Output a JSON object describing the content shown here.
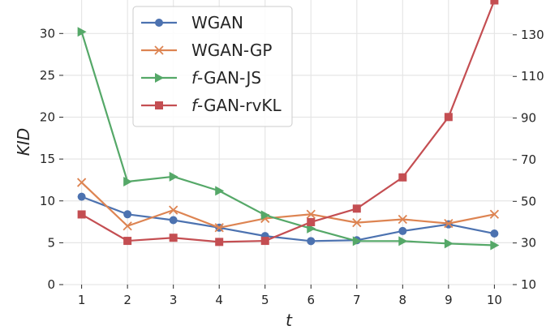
{
  "chart_data": {
    "type": "line",
    "xlabel": "t",
    "ylabel": "KID",
    "x": [
      1,
      2,
      3,
      4,
      5,
      6,
      7,
      8,
      9,
      10
    ],
    "xlim": [
      0.6,
      10.4
    ],
    "ylim": [
      0,
      34
    ],
    "y_ticks": [
      0,
      5,
      10,
      15,
      20,
      25,
      30
    ],
    "y2lim": [
      10,
      146.7
    ],
    "y2_ticks": [
      10,
      30,
      50,
      70,
      90,
      110,
      130
    ],
    "grid": true,
    "legend_position": "top-left",
    "series": [
      {
        "name": "WGAN",
        "name_prefix": "",
        "name_rest": "WGAN",
        "axis": "left",
        "color": "#4c72b0",
        "marker": "circle",
        "values": [
          10.5,
          8.4,
          7.7,
          6.8,
          5.8,
          5.2,
          5.3,
          6.4,
          7.2,
          6.1
        ]
      },
      {
        "name": "WGAN-GP",
        "name_prefix": "",
        "name_rest": "WGAN-GP",
        "axis": "left",
        "color": "#dd8452",
        "marker": "x",
        "values": [
          12.2,
          7.0,
          8.9,
          6.8,
          7.9,
          8.4,
          7.4,
          7.8,
          7.3,
          8.4
        ]
      },
      {
        "name": "f-GAN-JS",
        "name_prefix": "f",
        "name_rest": "-GAN-JS",
        "axis": "left",
        "color": "#55a868",
        "marker": "triangle-right",
        "values": [
          30.2,
          12.3,
          12.9,
          11.2,
          8.3,
          6.7,
          5.2,
          5.2,
          4.9,
          4.7
        ]
      },
      {
        "name": "f-GAN-rvKL",
        "name_prefix": "f",
        "name_rest": "-GAN-rvKL",
        "axis": "right",
        "color": "#c44e52",
        "marker": "square",
        "values": [
          43.7,
          31.0,
          32.5,
          30.5,
          31.0,
          40.0,
          46.5,
          61.5,
          90.5,
          146.5
        ]
      }
    ]
  }
}
